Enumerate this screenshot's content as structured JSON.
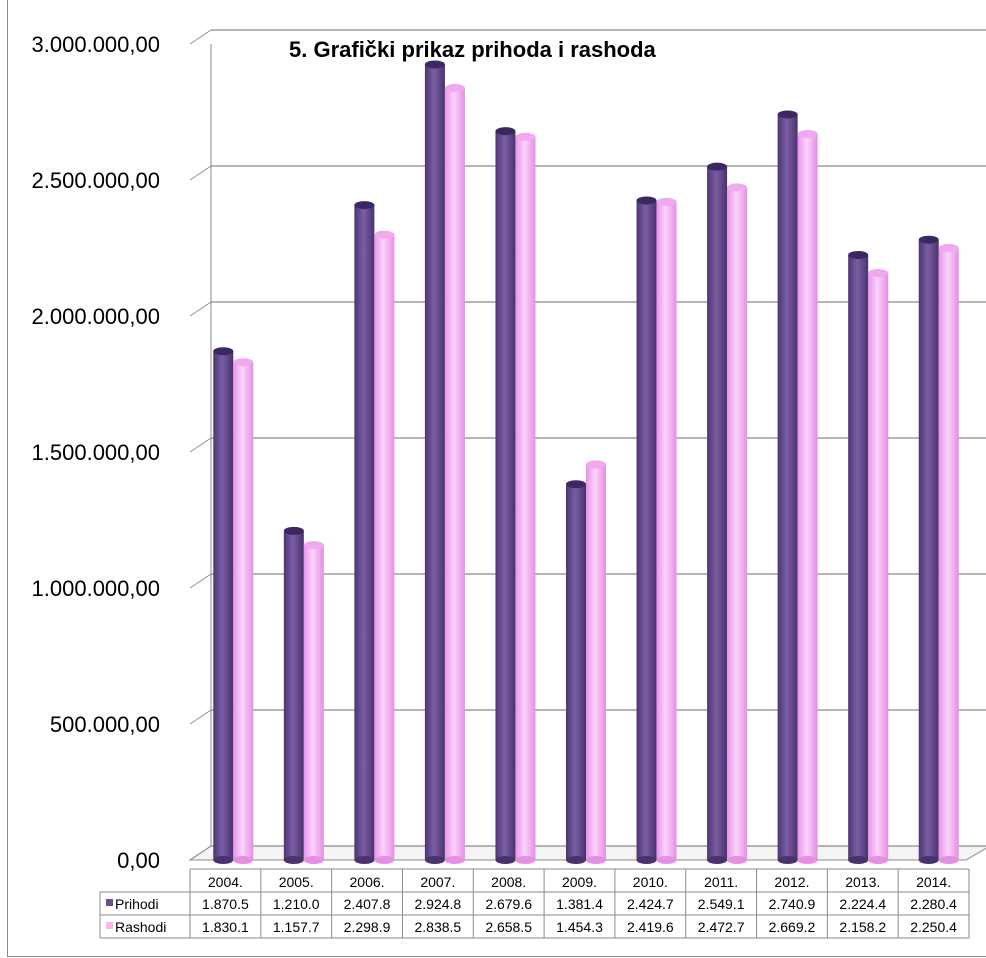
{
  "chart_data": {
    "type": "bar",
    "title": "5. Grafički prikaz prihoda i rashoda",
    "categories": [
      "2004.",
      "2005.",
      "2006.",
      "2007.",
      "2008.",
      "2009.",
      "2010.",
      "2011.",
      "2012.",
      "2013.",
      "2014."
    ],
    "series": [
      {
        "name": "Prihodi",
        "color": "#6a4f92",
        "values": [
          1870500,
          1210000,
          2407800,
          2924800,
          2679600,
          1381400,
          2424700,
          2549100,
          2740900,
          2224400,
          2280400
        ],
        "table_values": [
          "1.870.5",
          "1.210.0",
          "2.407.8",
          "2.924.8",
          "2.679.6",
          "1.381.4",
          "2.424.7",
          "2.549.1",
          "2.740.9",
          "2.224.4",
          "2.280.4"
        ]
      },
      {
        "name": "Rashodi",
        "color": "#f7b6f5",
        "values": [
          1830100,
          1157700,
          2298900,
          2838500,
          2658500,
          1454300,
          2419600,
          2472700,
          2669200,
          2158200,
          2250400
        ],
        "table_values": [
          "1.830.1",
          "1.157.7",
          "2.298.9",
          "2.838.5",
          "2.658.5",
          "1.454.3",
          "2.419.6",
          "2.472.7",
          "2.669.2",
          "2.158.2",
          "2.250.4"
        ]
      }
    ],
    "y_ticks": [
      {
        "value": 0,
        "label": "0,00"
      },
      {
        "value": 500000,
        "label": "500.000,00"
      },
      {
        "value": 1000000,
        "label": "1.000.000,00"
      },
      {
        "value": 1500000,
        "label": "1.500.000,00"
      },
      {
        "value": 2000000,
        "label": "2.000.000,00"
      },
      {
        "value": 2500000,
        "label": "2.500.000,00"
      },
      {
        "value": 3000000,
        "label": "3.000.000,00"
      }
    ],
    "ylim": [
      0,
      3000000
    ],
    "grid": true,
    "legend": "data-table"
  }
}
